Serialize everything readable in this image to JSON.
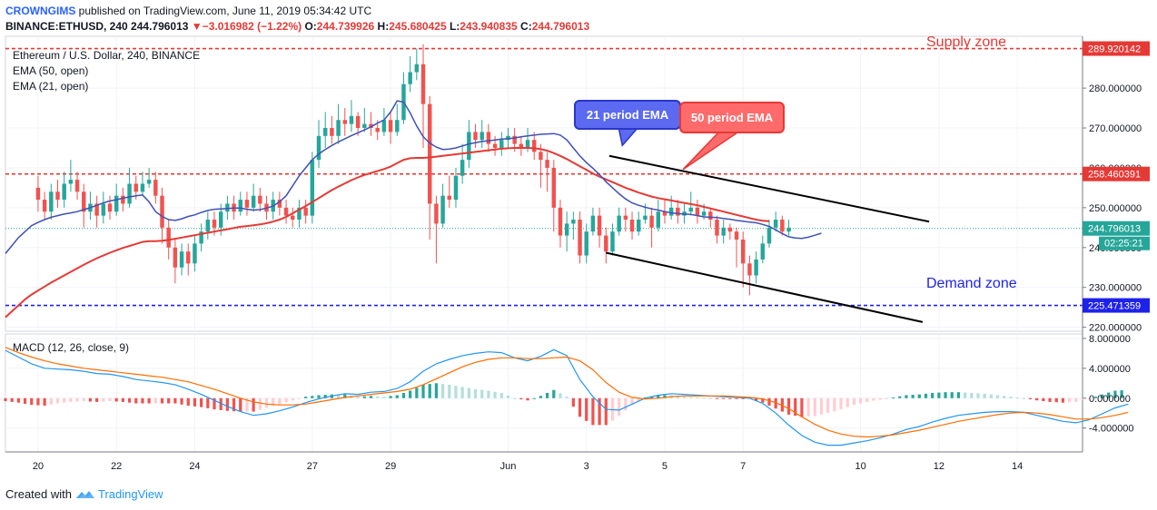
{
  "header": {
    "brand": "CROWNGIMS",
    "published_text": "published on TradingView.com, June 11, 2019 05:34:42 UTC",
    "symbol": "BINANCE:ETHUSD, 240",
    "last": "244.796013",
    "change_arrow": "▼",
    "change": "−3.016982 (−1.22%)",
    "o_label": "O:",
    "o_value": "244.739926",
    "h_label": "H:",
    "h_value": "245.680425",
    "l_label": "L:",
    "l_value": "243.940835",
    "c_label": "C:",
    "c_value": "244.796013"
  },
  "footer": {
    "created_with": "Created with",
    "brand": "TradingView",
    "logo_icon": "tradingview-logo-icon"
  },
  "chart_data": {
    "type": "candlestick",
    "title": "Ethereum / U.S. Dollar, 240, BINANCE",
    "legend": [
      "EMA (50, open)",
      "EMA (21, open)"
    ],
    "colors": {
      "up": "#26a69a",
      "down": "#ef5350",
      "ema21": "#3f51b5",
      "ema50": "#e53935",
      "supply": "#e53935",
      "demand": "#1e22e8",
      "macd": "#2196f3",
      "signal": "#ff6d00"
    },
    "x_ticks": [
      {
        "label": "20",
        "x": 0
      },
      {
        "label": "22",
        "x": 12
      },
      {
        "label": "24",
        "x": 24
      },
      {
        "label": "27",
        "x": 42
      },
      {
        "label": "29",
        "x": 54
      },
      {
        "label": "Jun",
        "x": 72
      },
      {
        "label": "3",
        "x": 84
      },
      {
        "label": "5",
        "x": 96
      },
      {
        "label": "7",
        "x": 108
      },
      {
        "label": "10",
        "x": 126
      },
      {
        "label": "12",
        "x": 138
      },
      {
        "label": "14",
        "x": 150
      }
    ],
    "xlim": [
      -5,
      160
    ],
    "ylim": [
      219,
      293
    ],
    "y_ticks": [
      "220.000000",
      "230.000000",
      "240.000000",
      "250.000000",
      "260.000000",
      "270.000000",
      "280.000000"
    ],
    "levels": {
      "supply": {
        "value": 289.920142,
        "label": "289.920142"
      },
      "resistance": {
        "value": 258.460391,
        "label": "258.460391"
      },
      "demand": {
        "value": 225.471359,
        "label": "225.471359"
      },
      "last_price": {
        "value": 244.796013,
        "label": "244.796013"
      },
      "countdown": "02:25:21"
    },
    "zone_labels": {
      "supply": "Supply zone",
      "demand": "Demand zone"
    },
    "callouts": {
      "ema21": {
        "text": "21 period EMA",
        "x": 89.5,
        "y": 265.6
      },
      "ema50": {
        "text": "50 period EMA",
        "x": 98.8,
        "y": 259.6
      }
    },
    "channel": {
      "upper": [
        [
          87.5,
          263.0
        ],
        [
          136.5,
          246.5
        ]
      ],
      "lower": [
        [
          87.0,
          238.7
        ],
        [
          135.5,
          221.3
        ]
      ]
    },
    "series_x0": -5,
    "series_dx": 1,
    "ema21": [
      238.5,
      240.5,
      242.5,
      244.0,
      245.5,
      246.3,
      247.0,
      247.6,
      248.0,
      248.4,
      248.7,
      249.0,
      249.5,
      250.0,
      250.6,
      251.2,
      251.7,
      252.0,
      252.4,
      252.7,
      253.0,
      253.2,
      251.5,
      249.0,
      247.8,
      247.0,
      246.8,
      247.2,
      247.8,
      248.2,
      248.8,
      249.3,
      249.6,
      249.7,
      249.8,
      249.9,
      249.9,
      249.6,
      249.4,
      249.5,
      249.9,
      250.4,
      251.5,
      253.0,
      255.5,
      258.0,
      260.0,
      262.0,
      263.5,
      264.6,
      265.6,
      266.5,
      267.3,
      268.1,
      268.8,
      269.5,
      270.3,
      271.2,
      272.0,
      274.0,
      276.8,
      276.5,
      273.8,
      270.5,
      267.8,
      266.2,
      265.2,
      264.6,
      264.7,
      265.0,
      265.5,
      266.0,
      266.3,
      266.6,
      266.8,
      267.0,
      267.2,
      267.3,
      267.5,
      267.8,
      268.0,
      268.2,
      268.4,
      268.5,
      268.6,
      268.2,
      267.0,
      265.0,
      263.0,
      261.3,
      259.9,
      258.3,
      256.5,
      255.0,
      253.5,
      252.2,
      251.2,
      250.6,
      250.1,
      249.7,
      249.4,
      249.0,
      248.7,
      248.5,
      248.4,
      248.3,
      248.0,
      247.7,
      247.6,
      247.5,
      247.3,
      247.1,
      246.8,
      246.6,
      246.4,
      246.2,
      245.8,
      245.3,
      244.4,
      243.5,
      242.7,
      242.4,
      242.3,
      242.6,
      243.1,
      243.6
    ],
    "ema50": [
      222.5,
      224.0,
      225.5,
      227.0,
      228.2,
      229.2,
      230.2,
      231.2,
      232.1,
      233.0,
      233.9,
      234.8,
      235.7,
      236.5,
      237.3,
      238.0,
      238.7,
      239.3,
      239.9,
      240.4,
      240.9,
      241.4,
      241.6,
      241.6,
      241.7,
      241.9,
      242.2,
      242.5,
      242.8,
      243.1,
      243.4,
      243.7,
      244.0,
      244.3,
      244.6,
      244.9,
      245.2,
      245.4,
      245.6,
      245.8,
      246.1,
      246.5,
      247.0,
      247.7,
      248.6,
      249.5,
      250.4,
      251.4,
      252.4,
      253.4,
      254.4,
      255.3,
      256.1,
      256.9,
      257.6,
      258.2,
      258.7,
      259.2,
      259.7,
      260.3,
      261.2,
      262.0,
      262.4,
      262.5,
      262.5,
      262.6,
      262.8,
      263.0,
      263.2,
      263.4,
      263.6,
      263.8,
      264.0,
      264.2,
      264.4,
      264.6,
      264.8,
      264.9,
      265.0,
      265.0,
      265.0,
      264.9,
      264.7,
      264.3,
      263.7,
      263.0,
      262.2,
      261.3,
      260.4,
      259.5,
      258.6,
      257.8,
      257.1,
      256.4,
      255.7,
      255.0,
      254.4,
      253.8,
      253.3,
      252.8,
      252.4,
      252.1,
      251.8,
      251.5,
      251.2,
      250.9,
      250.6,
      250.2,
      249.8,
      249.4,
      249.0,
      248.6,
      248.2,
      247.8,
      247.4,
      247.0,
      246.7,
      246.6
    ],
    "candles_x0": 0,
    "candles": [
      [
        255,
        252,
        258,
        249
      ],
      [
        252,
        249,
        254,
        247
      ],
      [
        249,
        254,
        256,
        247
      ],
      [
        254,
        252,
        257,
        250
      ],
      [
        252,
        256,
        259,
        250
      ],
      [
        256,
        257,
        262,
        254
      ],
      [
        257,
        254,
        259,
        252
      ],
      [
        254,
        249,
        256,
        245
      ],
      [
        249,
        251,
        254,
        247
      ],
      [
        251,
        248,
        253,
        245
      ],
      [
        248,
        251,
        254,
        246
      ],
      [
        251,
        249,
        253,
        247
      ],
      [
        249,
        253,
        256,
        248
      ],
      [
        253,
        251,
        255,
        249
      ],
      [
        251,
        256,
        260,
        250
      ],
      [
        256,
        254,
        258,
        252
      ],
      [
        254,
        256,
        259,
        253
      ],
      [
        256,
        257,
        260,
        255
      ],
      [
        257,
        253,
        259,
        251
      ],
      [
        253,
        245,
        255,
        241
      ],
      [
        245,
        240,
        247,
        237
      ],
      [
        240,
        235,
        242,
        231
      ],
      [
        235,
        239,
        241,
        233
      ],
      [
        239,
        236,
        241,
        233
      ],
      [
        236,
        241,
        243,
        234
      ],
      [
        241,
        244,
        246,
        239
      ],
      [
        244,
        247,
        249,
        242
      ],
      [
        247,
        245,
        249,
        243
      ],
      [
        245,
        249,
        251,
        243
      ],
      [
        249,
        251,
        253,
        247
      ],
      [
        251,
        249,
        253,
        247
      ],
      [
        249,
        252,
        254,
        248
      ],
      [
        252,
        250,
        254,
        248
      ],
      [
        250,
        253,
        256,
        249
      ],
      [
        253,
        251,
        255,
        249
      ],
      [
        251,
        249,
        253,
        247
      ],
      [
        249,
        252,
        254,
        247
      ],
      [
        252,
        250,
        254,
        248
      ],
      [
        250,
        248,
        252,
        246
      ],
      [
        248,
        247,
        250,
        245
      ],
      [
        247,
        250,
        252,
        245
      ],
      [
        250,
        248,
        252,
        246
      ],
      [
        248,
        262,
        264,
        246
      ],
      [
        262,
        268,
        272,
        260
      ],
      [
        268,
        270,
        274,
        265
      ],
      [
        270,
        268,
        273,
        266
      ],
      [
        268,
        272,
        276,
        266
      ],
      [
        272,
        271,
        275,
        268
      ],
      [
        271,
        273,
        277,
        269
      ],
      [
        273,
        270,
        274,
        268
      ],
      [
        270,
        271,
        275,
        269
      ],
      [
        271,
        270,
        274,
        268
      ],
      [
        270,
        269,
        272,
        267
      ],
      [
        269,
        272,
        275,
        268
      ],
      [
        272,
        269,
        274,
        266
      ],
      [
        269,
        272,
        276,
        268
      ],
      [
        272,
        281,
        284,
        271
      ],
      [
        281,
        284,
        288,
        279
      ],
      [
        284,
        286,
        290,
        282
      ],
      [
        286,
        276,
        291,
        265
      ],
      [
        276,
        251,
        278,
        242
      ],
      [
        251,
        246,
        253,
        236
      ],
      [
        246,
        253,
        256,
        245
      ],
      [
        253,
        252,
        258,
        250
      ],
      [
        252,
        258,
        260,
        250
      ],
      [
        258,
        262,
        266,
        256
      ],
      [
        262,
        269,
        272,
        260
      ],
      [
        269,
        267,
        271,
        265
      ],
      [
        267,
        269,
        272,
        265
      ],
      [
        269,
        266,
        271,
        264
      ],
      [
        266,
        265,
        268,
        263
      ],
      [
        265,
        267,
        269,
        263
      ],
      [
        267,
        268,
        270,
        265
      ],
      [
        268,
        266,
        270,
        264
      ],
      [
        266,
        265,
        268,
        263
      ],
      [
        265,
        267,
        270,
        264
      ],
      [
        267,
        264,
        269,
        262
      ],
      [
        264,
        262,
        266,
        255
      ],
      [
        262,
        260,
        264,
        254
      ],
      [
        260,
        250,
        262,
        244
      ],
      [
        250,
        243,
        252,
        240
      ],
      [
        243,
        246,
        249,
        239
      ],
      [
        246,
        247,
        249,
        242
      ],
      [
        247,
        238,
        249,
        236
      ],
      [
        238,
        244,
        246,
        236
      ],
      [
        244,
        248,
        250,
        243
      ],
      [
        248,
        243,
        250,
        240
      ],
      [
        243,
        239,
        245,
        236
      ],
      [
        239,
        244,
        246,
        238
      ],
      [
        244,
        248,
        250,
        243
      ],
      [
        248,
        247,
        250,
        244
      ],
      [
        247,
        244,
        249,
        242
      ],
      [
        244,
        247,
        249,
        243
      ],
      [
        247,
        248,
        251,
        246
      ],
      [
        248,
        245,
        250,
        240
      ],
      [
        245,
        249,
        252,
        244
      ],
      [
        249,
        248,
        252,
        246
      ],
      [
        248,
        250,
        253,
        247
      ],
      [
        250,
        248,
        252,
        246
      ],
      [
        248,
        249,
        251,
        246
      ],
      [
        249,
        250,
        254,
        248
      ],
      [
        250,
        248,
        252,
        246
      ],
      [
        248,
        249,
        251,
        247
      ],
      [
        249,
        247,
        250,
        245
      ],
      [
        247,
        243,
        248,
        241
      ],
      [
        243,
        245,
        247,
        241
      ],
      [
        245,
        244,
        246,
        242
      ],
      [
        244,
        242,
        245,
        235
      ],
      [
        242,
        236,
        244,
        230
      ],
      [
        236,
        233,
        238,
        228
      ],
      [
        233,
        237,
        239,
        231
      ],
      [
        237,
        241,
        243,
        236
      ],
      [
        241,
        245,
        247,
        240
      ],
      [
        245,
        247,
        249,
        244
      ],
      [
        247,
        244,
        248,
        243
      ],
      [
        244,
        245,
        247,
        243
      ]
    ],
    "macd": {
      "label": "MACD (12, 26, close, 9)",
      "ylim": [
        -7.2,
        8.6
      ],
      "y_ticks": [
        "8.000000",
        "4.000000",
        "0.000000",
        "-4.000000"
      ],
      "x0": -5,
      "line": [
        6.4,
        5.5,
        4.6,
        4.0,
        3.9,
        3.8,
        3.6,
        3.3,
        3.2,
        2.9,
        2.5,
        2.3,
        2.1,
        1.8,
        1.2,
        0.5,
        -0.3,
        -1.1,
        -1.8,
        -2.3,
        -2.1,
        -1.7,
        -1.2,
        -0.6,
        -0.1,
        0.3,
        0.6,
        0.5,
        0.8,
        0.9,
        1.3,
        2.2,
        3.6,
        4.6,
        5.2,
        5.7,
        6.0,
        6.2,
        6.1,
        5.4,
        5.0,
        5.6,
        6.5,
        5.7,
        2.5,
        0.2,
        -1.5,
        -1.6,
        -0.8,
        0.0,
        0.4,
        0.6,
        0.5,
        0.4,
        0.3,
        0.2,
        0.1,
        0.0,
        -0.7,
        -2.0,
        -3.6,
        -5.0,
        -5.9,
        -6.3,
        -6.3,
        -6.0,
        -5.7,
        -5.3,
        -4.8,
        -4.2,
        -3.8,
        -3.2,
        -2.7,
        -2.3,
        -2.1,
        -1.9,
        -1.8,
        -1.8,
        -1.9,
        -2.3,
        -2.7,
        -3.1,
        -3.3,
        -2.9,
        -2.1,
        -1.3,
        -0.8
      ],
      "signal": [
        6.8,
        6.1,
        5.5,
        5.0,
        4.6,
        4.3,
        4.0,
        3.8,
        3.6,
        3.4,
        3.2,
        3.0,
        2.8,
        2.5,
        2.2,
        1.7,
        1.2,
        0.6,
        0.0,
        -0.5,
        -0.8,
        -0.9,
        -0.9,
        -0.8,
        -0.5,
        -0.2,
        0.1,
        0.3,
        0.5,
        0.7,
        0.9,
        1.2,
        1.8,
        2.6,
        3.4,
        4.2,
        4.8,
        5.2,
        5.4,
        5.4,
        5.3,
        5.3,
        5.4,
        5.5,
        5.0,
        3.8,
        2.1,
        0.8,
        0.1,
        -0.1,
        0.0,
        0.2,
        0.3,
        0.3,
        0.3,
        0.3,
        0.2,
        0.1,
        -0.1,
        -0.6,
        -1.4,
        -2.5,
        -3.5,
        -4.3,
        -4.8,
        -5.1,
        -5.2,
        -5.1,
        -4.9,
        -4.6,
        -4.3,
        -3.9,
        -3.5,
        -3.1,
        -2.8,
        -2.5,
        -2.2,
        -2.0,
        -1.9,
        -2.0,
        -2.2,
        -2.5,
        -2.8,
        -2.8,
        -2.6,
        -2.3,
        -1.9
      ],
      "x_step": 2
    }
  }
}
